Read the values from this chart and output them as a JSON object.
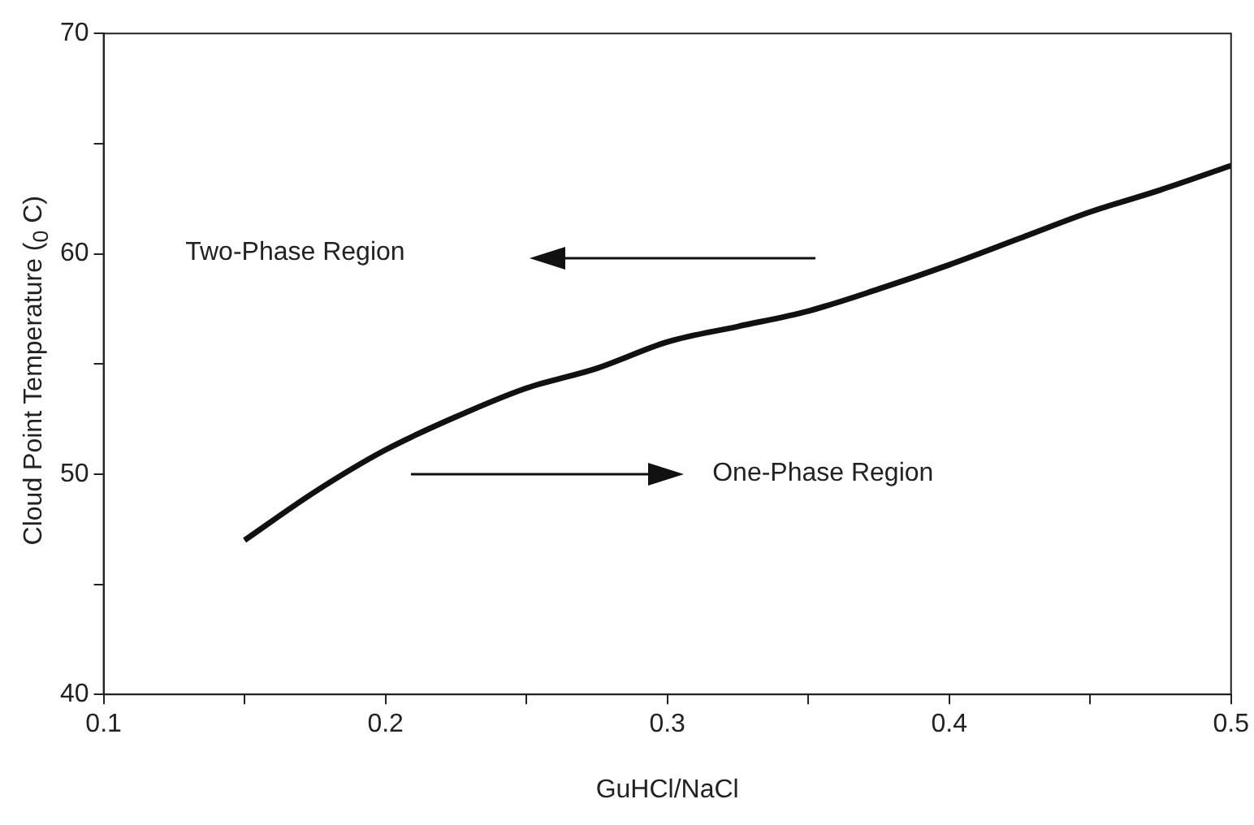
{
  "chart_data": {
    "type": "line",
    "xlabel": "GuHCl/NaCl",
    "ylabel": "Cloud Point Temperature ($_{0}$ C)",
    "x": [
      0.15,
      0.175,
      0.2,
      0.225,
      0.25,
      0.275,
      0.3,
      0.325,
      0.35,
      0.375,
      0.4,
      0.425,
      0.45,
      0.475,
      0.5
    ],
    "series": [
      {
        "color": "#111111",
        "values": [
          47.0,
          49.2,
          51.1,
          52.6,
          53.9,
          54.8,
          56.0,
          56.7,
          57.4,
          58.4,
          59.5,
          60.7,
          61.9,
          62.9,
          64.0
        ]
      }
    ],
    "xlim": [
      0.1,
      0.5
    ],
    "xticks": [
      0.1,
      {
        "value": 0.15,
        "label": null
      },
      0.2,
      {
        "value": 0.25,
        "label": null
      },
      0.3,
      {
        "value": 0.35,
        "label": null
      },
      0.4,
      {
        "value": 0.45,
        "label": null
      },
      0.5
    ],
    "ylim": [
      40,
      70
    ],
    "yticks": [
      40,
      {
        "value": 45,
        "label": null
      },
      50,
      {
        "value": 55,
        "label": null
      },
      60,
      {
        "value": 65,
        "label": null
      },
      70
    ],
    "annotations": [
      "Two-Phase Region",
      "One-Phase Region"
    ],
    "grid": false,
    "legend": false,
    "marker": "none",
    "line_style": "solid"
  }
}
